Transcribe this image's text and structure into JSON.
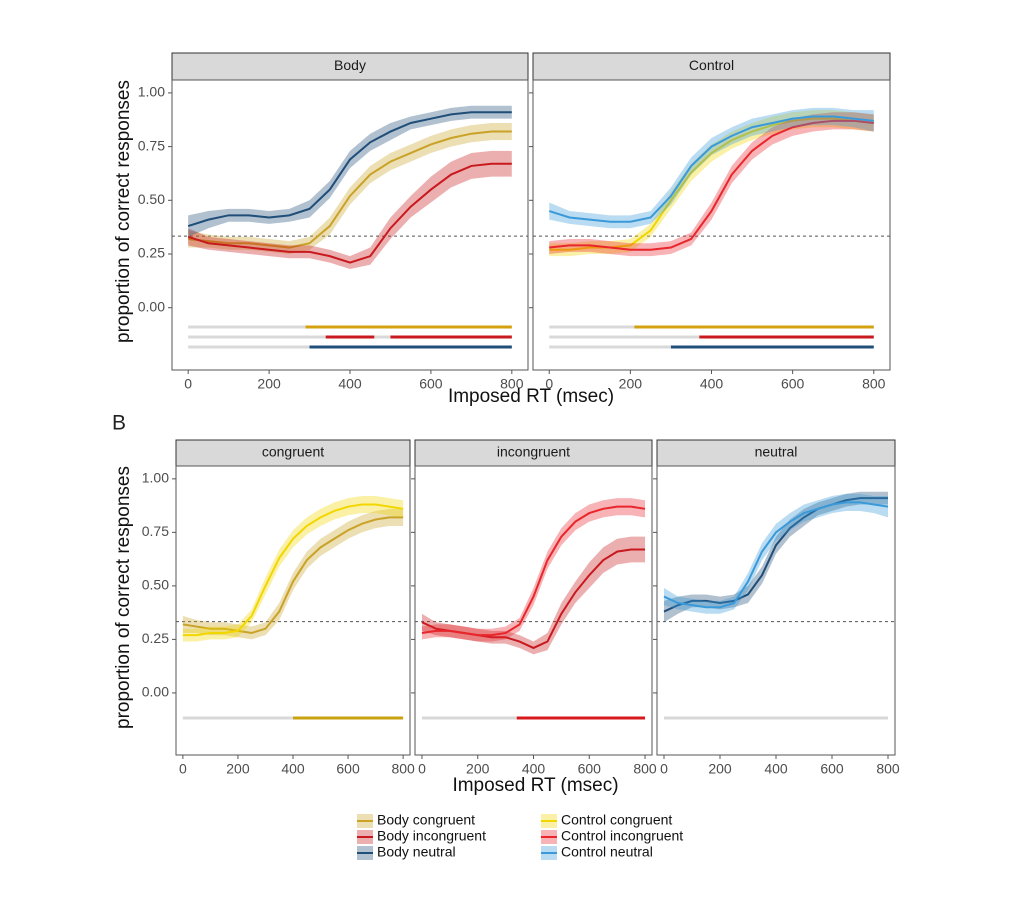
{
  "chart_data": [
    {
      "type": "line",
      "xlabel": "Imposed RT (msec)",
      "ylabel": "proportion of correct responses",
      "x": [
        0,
        50,
        100,
        150,
        200,
        250,
        300,
        350,
        400,
        450,
        500,
        550,
        600,
        650,
        700,
        750,
        800
      ],
      "xlim": [
        -40,
        840
      ],
      "xticks": [
        0,
        200,
        400,
        600,
        800
      ],
      "ylim": [
        -0.29,
        1.06
      ],
      "yticks": [
        {
          "value": 0,
          "label": "0.00"
        },
        {
          "value": 0.25,
          "label": "0.25"
        },
        {
          "value": 0.5,
          "label": "0.50"
        },
        {
          "value": 0.75,
          "label": "0.75"
        },
        {
          "value": 1,
          "label": "1.00"
        }
      ],
      "hline": 0.333,
      "facets": [
        {
          "title": "Body",
          "series": [
            {
              "name": "Body congruent",
              "color": "#c9a227",
              "values": [
                0.32,
                0.31,
                0.3,
                0.3,
                0.29,
                0.28,
                0.3,
                0.38,
                0.52,
                0.62,
                0.68,
                0.72,
                0.76,
                0.79,
                0.81,
                0.82,
                0.82
              ],
              "errors": [
                0.04,
                0.03,
                0.03,
                0.03,
                0.03,
                0.03,
                0.03,
                0.04,
                0.04,
                0.04,
                0.04,
                0.04,
                0.04,
                0.04,
                0.04,
                0.04,
                0.04
              ]
            },
            {
              "name": "Body incongruent",
              "color": "#c8191e",
              "values": [
                0.33,
                0.3,
                0.29,
                0.28,
                0.27,
                0.26,
                0.26,
                0.24,
                0.21,
                0.24,
                0.37,
                0.47,
                0.55,
                0.62,
                0.66,
                0.67,
                0.67
              ],
              "errors": [
                0.04,
                0.03,
                0.03,
                0.03,
                0.03,
                0.03,
                0.03,
                0.03,
                0.03,
                0.04,
                0.05,
                0.05,
                0.06,
                0.06,
                0.06,
                0.06,
                0.06
              ]
            },
            {
              "name": "Body neutral",
              "color": "#1f4e79",
              "values": [
                0.38,
                0.41,
                0.43,
                0.43,
                0.42,
                0.43,
                0.46,
                0.55,
                0.69,
                0.77,
                0.82,
                0.86,
                0.88,
                0.9,
                0.91,
                0.91,
                0.91
              ],
              "errors": [
                0.05,
                0.04,
                0.03,
                0.03,
                0.03,
                0.03,
                0.04,
                0.04,
                0.04,
                0.04,
                0.04,
                0.03,
                0.03,
                0.03,
                0.03,
                0.03,
                0.03
              ]
            }
          ],
          "significance": [
            {
              "color": "#d4a20f",
              "segments": [
                [
                  290,
                  800
                ]
              ]
            },
            {
              "color": "#c8191e",
              "segments": [
                [
                  340,
                  460
                ],
                [
                  500,
                  800
                ]
              ]
            },
            {
              "color": "#1f4e79",
              "segments": [
                [
                  300,
                  800
                ]
              ]
            }
          ]
        },
        {
          "title": "Control",
          "series": [
            {
              "name": "Control congruent",
              "color": "#f2d600",
              "values": [
                0.27,
                0.27,
                0.28,
                0.28,
                0.29,
                0.36,
                0.5,
                0.63,
                0.72,
                0.78,
                0.82,
                0.85,
                0.87,
                0.88,
                0.88,
                0.87,
                0.86
              ],
              "errors": [
                0.03,
                0.03,
                0.03,
                0.03,
                0.03,
                0.03,
                0.04,
                0.04,
                0.04,
                0.04,
                0.04,
                0.04,
                0.04,
                0.04,
                0.04,
                0.04,
                0.04
              ]
            },
            {
              "name": "Control incongruent",
              "color": "#e8262c",
              "values": [
                0.28,
                0.29,
                0.29,
                0.28,
                0.27,
                0.27,
                0.28,
                0.32,
                0.45,
                0.62,
                0.73,
                0.8,
                0.84,
                0.86,
                0.87,
                0.87,
                0.86
              ],
              "errors": [
                0.03,
                0.03,
                0.03,
                0.03,
                0.03,
                0.03,
                0.03,
                0.03,
                0.04,
                0.04,
                0.04,
                0.04,
                0.04,
                0.04,
                0.04,
                0.04,
                0.04
              ]
            },
            {
              "name": "Control neutral",
              "color": "#3a9ad9",
              "values": [
                0.45,
                0.42,
                0.41,
                0.4,
                0.4,
                0.42,
                0.52,
                0.66,
                0.75,
                0.8,
                0.84,
                0.86,
                0.88,
                0.89,
                0.89,
                0.88,
                0.87
              ],
              "errors": [
                0.04,
                0.03,
                0.03,
                0.03,
                0.03,
                0.03,
                0.04,
                0.04,
                0.04,
                0.04,
                0.04,
                0.04,
                0.04,
                0.04,
                0.04,
                0.04,
                0.05
              ]
            }
          ],
          "significance": [
            {
              "color": "#d4a20f",
              "segments": [
                [
                  210,
                  800
                ]
              ]
            },
            {
              "color": "#c8191e",
              "segments": [
                [
                  370,
                  800
                ]
              ]
            },
            {
              "color": "#1f4e79",
              "segments": [
                [
                  300,
                  800
                ]
              ]
            }
          ]
        }
      ]
    },
    {
      "type": "line",
      "label": "B",
      "xlabel": "Imposed RT (msec)",
      "ylabel": "proportion of correct responses",
      "xlim": [
        -25,
        825
      ],
      "xticks": [
        0,
        200,
        400,
        600,
        800
      ],
      "ylim": [
        -0.29,
        1.06
      ],
      "yticks": [
        {
          "value": 0,
          "label": "0.00"
        },
        {
          "value": 0.25,
          "label": "0.25"
        },
        {
          "value": 0.5,
          "label": "0.50"
        },
        {
          "value": 0.75,
          "label": "0.75"
        },
        {
          "value": 1,
          "label": "1.00"
        }
      ],
      "hline": 0.333,
      "facets": [
        {
          "title": "congruent",
          "significance": [
            {
              "color": "#c9a20f",
              "segments": [
                [
                  400,
                  800
                ]
              ]
            }
          ]
        },
        {
          "title": "incongruent",
          "significance": [
            {
              "color": "#d7191e",
              "segments": [
                [
                  340,
                  800
                ]
              ]
            }
          ]
        },
        {
          "title": "neutral",
          "significance": [
            {
              "color": "#d9d9d9",
              "segments": []
            }
          ]
        }
      ]
    }
  ]
}
